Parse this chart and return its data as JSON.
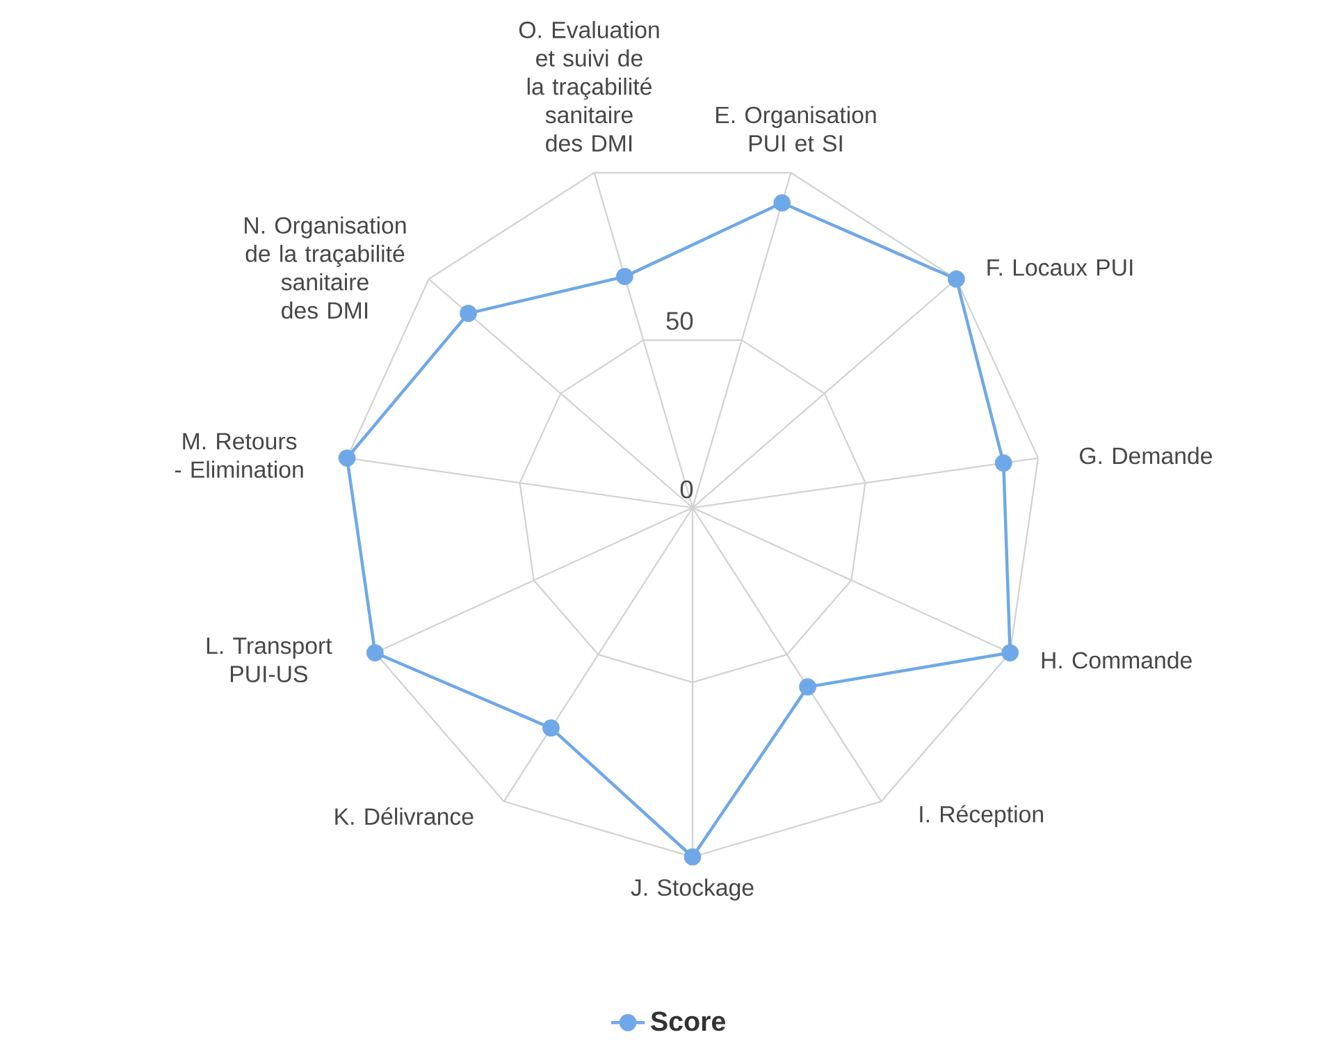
{
  "chart_data": {
    "type": "radar",
    "categories": [
      "E. Organisation PUI et SI",
      "F. Locaux PUI",
      "G. Demande",
      "H. Commande",
      "I. Réception",
      "J. Stockage",
      "K. Délivrance",
      "L. Transport PUI-US",
      "M. Retours - Elimination",
      "N. Organisation de la traçabilité sanitaire des DMI",
      "O. Evaluation et suivi de la traçabilité sanitaire des DMI"
    ],
    "series": [
      {
        "name": "Score",
        "color": "#6fa8e8",
        "values": [
          91,
          100,
          90,
          100,
          61,
          100,
          75,
          100,
          100,
          85,
          69
        ]
      }
    ],
    "ylim": [
      0,
      100
    ],
    "yticks": [
      0,
      50
    ],
    "grid": true,
    "legend": "bottom",
    "marker": "circle",
    "line_style": "solid"
  }
}
